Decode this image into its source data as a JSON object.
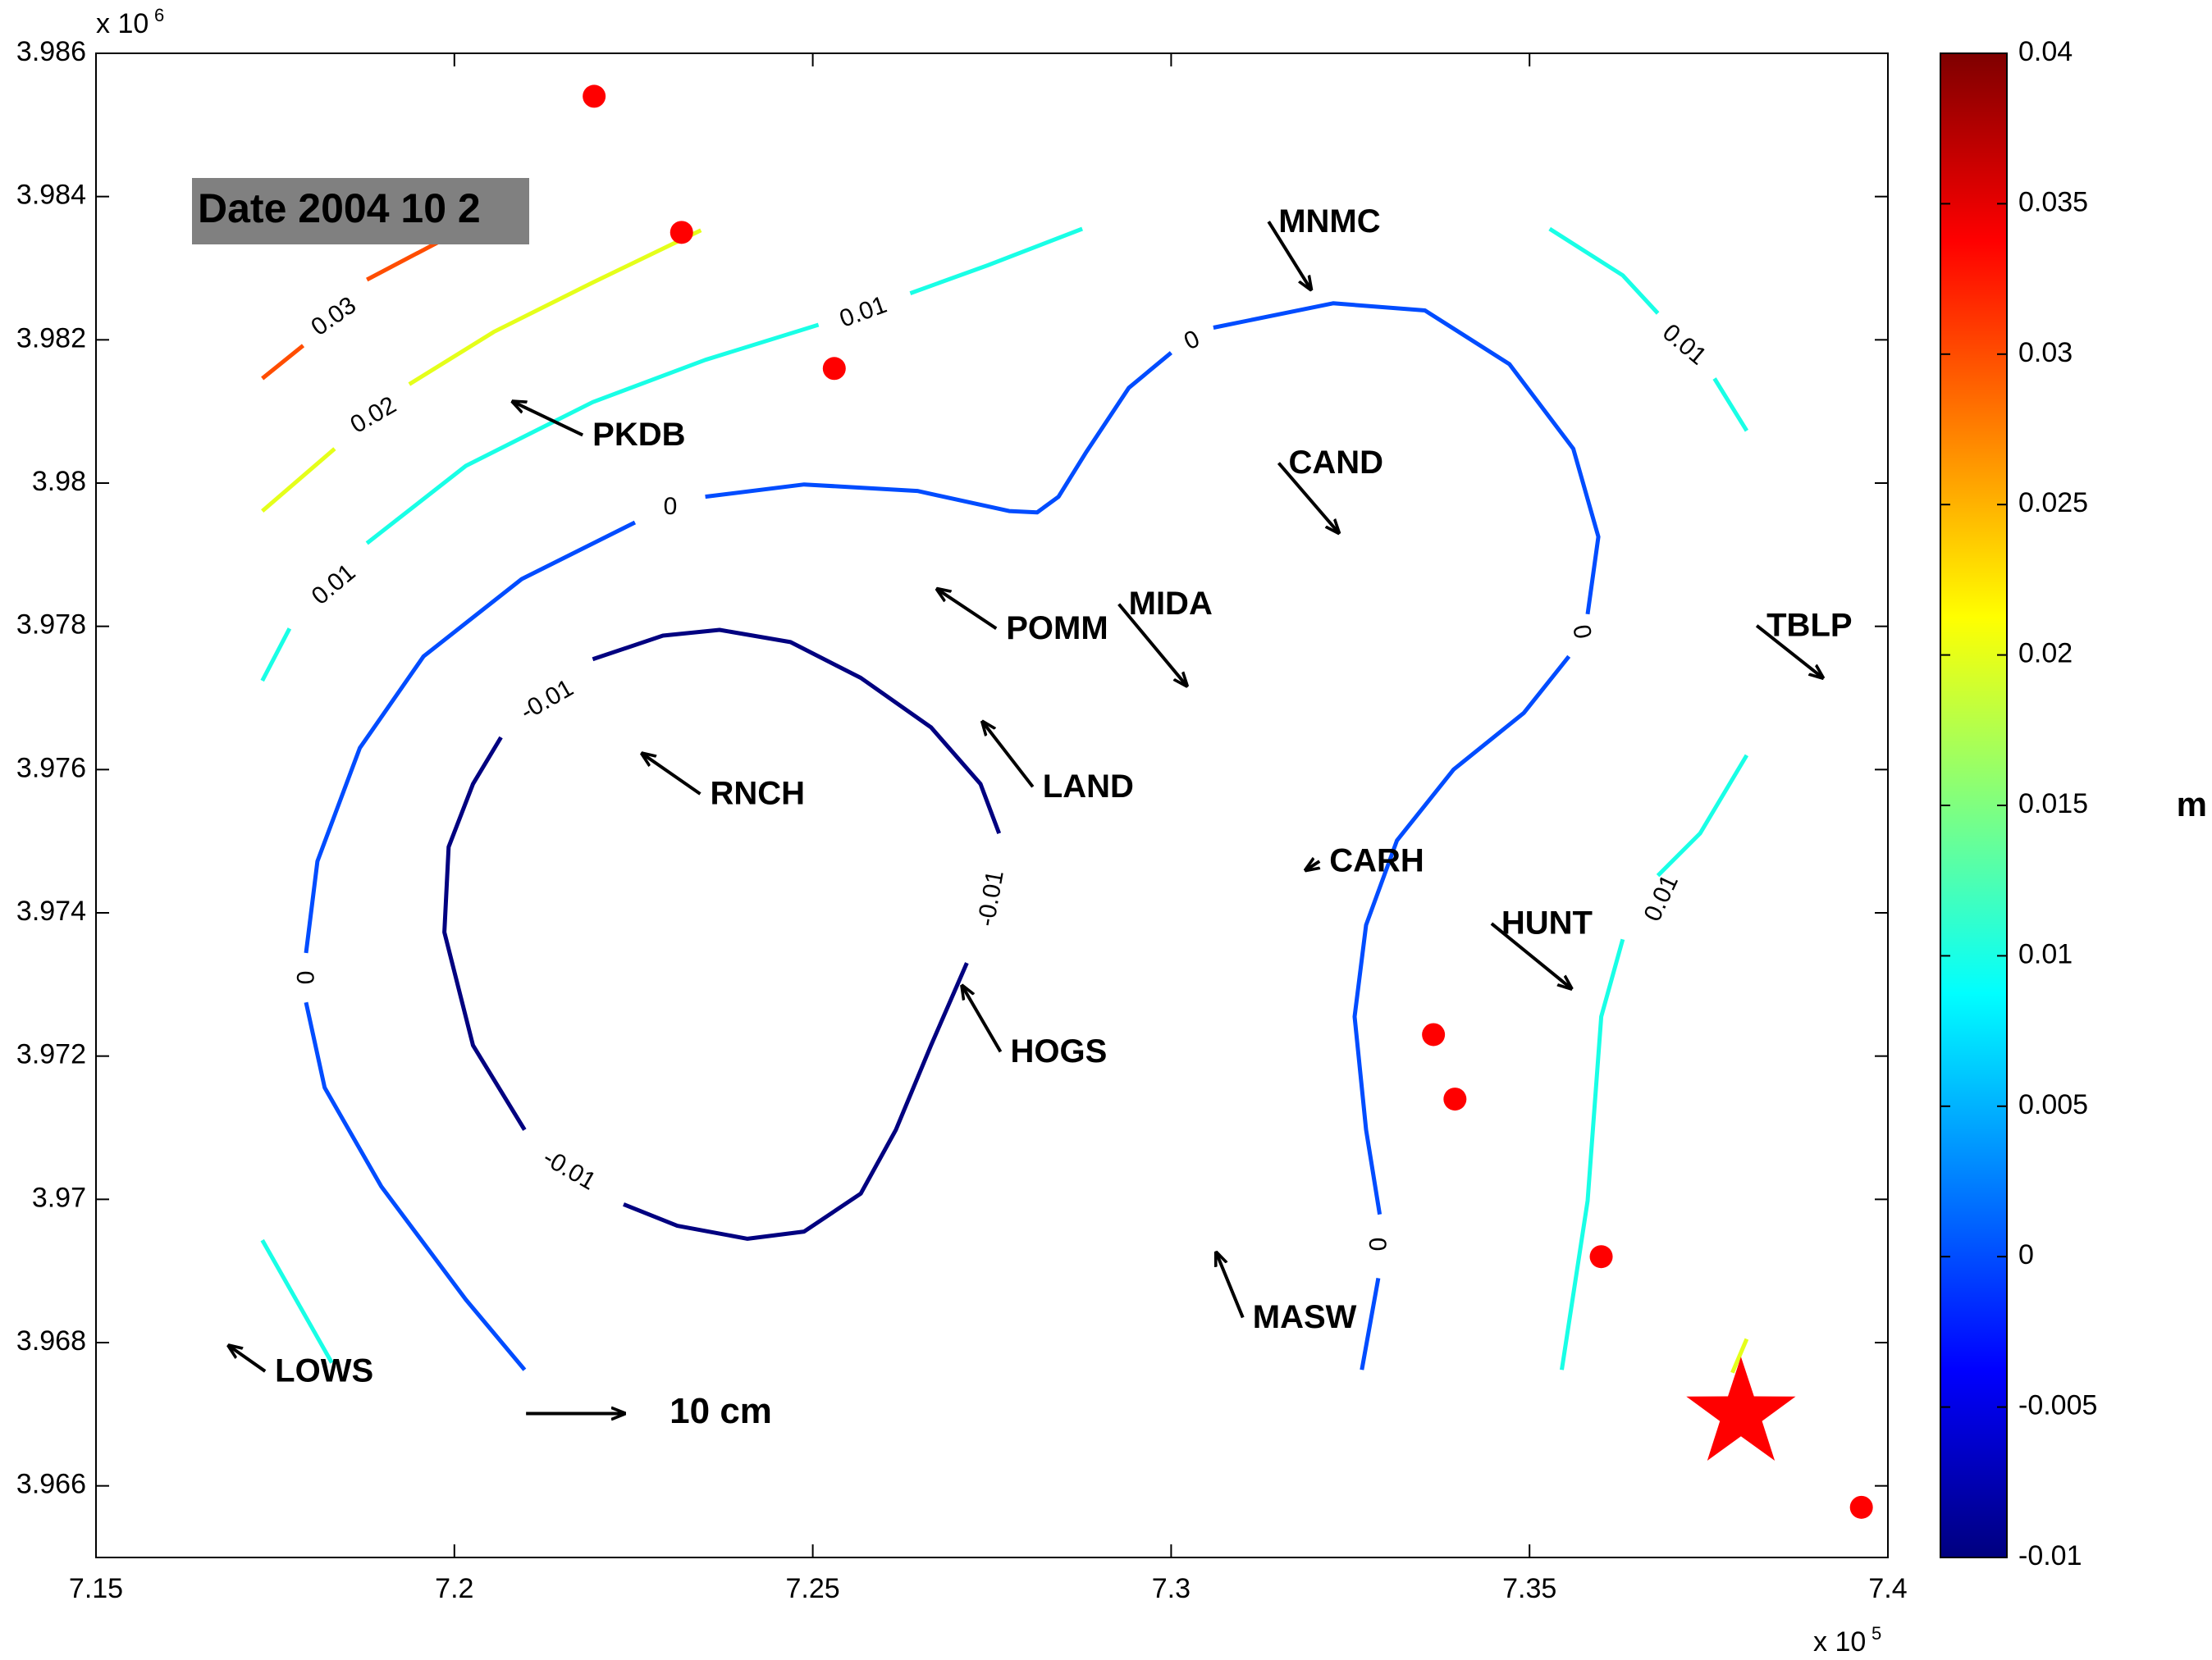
{
  "chart_data": {
    "type": "contour",
    "date_label": "Date 2004 10 2",
    "x_multiplier": "x 10",
    "x_power": "5",
    "y_multiplier": "x 10",
    "y_power": "6",
    "xlim": [
      7.15,
      7.4
    ],
    "xticks": [
      7.15,
      7.2,
      7.25,
      7.3,
      7.35,
      7.4
    ],
    "ylim": [
      3.965,
      3.986
    ],
    "yticks": [
      3.966,
      3.968,
      3.97,
      3.972,
      3.974,
      3.976,
      3.978,
      3.98,
      3.982,
      3.984,
      3.986
    ],
    "colormap": "jet",
    "colorbar_label": "m",
    "clim": [
      -0.01,
      0.04
    ],
    "cticks": [
      -0.01,
      -0.005,
      0,
      0.005,
      0.01,
      0.015,
      0.02,
      0.025,
      0.03,
      0.035,
      0.04
    ],
    "contours": [
      {
        "level": 0.03,
        "x": [
          7.1732,
          7.1789,
          null,
          7.1878,
          7.1992
        ],
        "y": [
          3.98146,
          3.98192,
          null,
          3.98284,
          3.98344
        ]
      },
      {
        "level": 0.02,
        "x": [
          7.1732,
          7.1833,
          null,
          7.1937,
          7.2055,
          7.2193,
          7.2344,
          null,
          7.3803,
          7.3783
        ],
        "y": [
          3.97961,
          3.98048,
          null,
          3.98138,
          3.98211,
          3.9828,
          3.98353,
          null,
          3.96805,
          3.96758
        ]
      },
      {
        "level": 0.01,
        "x": [
          7.1732,
          7.177,
          null,
          7.1878,
          7.2016,
          7.2193,
          7.235,
          7.2508,
          null,
          7.2636,
          7.2744,
          7.2876
        ],
        "y": [
          3.97724,
          3.97797,
          null,
          3.97916,
          3.98024,
          3.98113,
          3.98172,
          3.98221,
          null,
          3.98265,
          3.98304,
          3.98355
        ]
      },
      {
        "level": 0.01,
        "x": [
          7.3528,
          7.363,
          7.3679,
          null,
          7.3758,
          7.3803
        ],
        "y": [
          3.98355,
          3.9829,
          3.98237,
          null,
          3.98146,
          3.98073
        ]
      },
      {
        "level": 0.01,
        "x": [
          7.3803,
          7.3738,
          7.3679,
          null,
          7.363,
          7.36,
          7.3581,
          7.3545
        ],
        "y": [
          3.9762,
          3.97511,
          3.97452,
          null,
          3.97363,
          3.97255,
          3.96998,
          3.96762
        ]
      },
      {
        "level": 0.01,
        "x": [
          7.1732,
          7.1829
        ],
        "y": [
          3.96943,
          3.96772
        ]
      },
      {
        "level": 0,
        "x": [
          7.2098,
          7.2016,
          7.1898,
          7.1819,
          7.1793,
          null,
          7.1793,
          7.1809,
          7.1868,
          7.1957,
          7.2094,
          7.2252,
          null,
          7.235,
          7.2488,
          7.2646,
          7.2774,
          7.2813,
          7.2843,
          7.2882,
          7.2941,
          7.3,
          null,
          7.3059,
          7.3226,
          7.3354,
          7.3472,
          7.3561,
          7.3596,
          7.3581,
          null,
          7.3555,
          7.3492,
          7.3394,
          7.3315,
          7.3272,
          7.3256,
          7.3272,
          7.3291,
          null,
          7.3289,
          7.3266
        ],
        "y": [
          3.96762,
          3.9686,
          3.97018,
          3.97156,
          3.97275,
          null,
          3.97344,
          3.97472,
          3.9763,
          3.97758,
          3.97866,
          3.97945,
          null,
          3.97981,
          3.97998,
          3.97989,
          3.97961,
          3.97959,
          3.97981,
          3.98044,
          3.98133,
          3.98182,
          null,
          3.98217,
          3.98251,
          3.98241,
          3.98166,
          3.98048,
          3.97925,
          3.97817,
          null,
          3.97758,
          3.97679,
          3.976,
          3.97501,
          3.97383,
          3.97255,
          3.97097,
          3.96979,
          null,
          3.9689,
          3.96762
        ]
      },
      {
        "level": -0.01,
        "x": [
          7.2193,
          7.2291,
          7.237,
          7.2469,
          7.2567,
          7.2665,
          7.2734,
          7.276,
          null,
          7.2715,
          7.2665,
          7.2616,
          7.2567,
          7.2488,
          7.2409,
          7.2311,
          7.2236,
          null,
          7.2098,
          7.2026,
          7.1986,
          7.1992,
          7.2026,
          7.2065
        ],
        "y": [
          3.97754,
          3.97787,
          3.97795,
          3.97778,
          3.97728,
          3.97659,
          3.9758,
          3.97511,
          null,
          3.9733,
          3.97215,
          3.97097,
          3.97008,
          3.96955,
          3.96945,
          3.96963,
          3.96993,
          null,
          3.97097,
          3.97215,
          3.97373,
          3.97492,
          3.9758,
          3.97645
        ]
      }
    ],
    "stations": [
      {
        "name": "PKDB",
        "x": 7.2179,
        "y": 3.98067,
        "u": -7.1,
        "v": 3.4
      },
      {
        "name": "MNMC",
        "x": 7.3136,
        "y": 3.98365,
        "u": 4.3,
        "v": -6.9
      },
      {
        "name": "CAND",
        "x": 7.315,
        "y": 3.98028,
        "u": 6.1,
        "v": -7.1
      },
      {
        "name": "POMM",
        "x": 7.2756,
        "y": 3.97797,
        "u": -6.0,
        "v": 4.0
      },
      {
        "name": "MIDA",
        "x": 7.2927,
        "y": 3.97831,
        "u": 6.9,
        "v": -8.3
      },
      {
        "name": "TBLP",
        "x": 7.3817,
        "y": 3.97801,
        "u": 6.7,
        "v": -5.3
      },
      {
        "name": "RNCH",
        "x": 7.2343,
        "y": 3.97566,
        "u": -5.9,
        "v": 4.1
      },
      {
        "name": "LAND",
        "x": 7.2807,
        "y": 3.97576,
        "u": -5.1,
        "v": 6.6
      },
      {
        "name": "CARH",
        "x": 7.3207,
        "y": 3.97472,
        "u": -1.4,
        "v": -0.9
      },
      {
        "name": "HUNT",
        "x": 7.3447,
        "y": 3.97385,
        "u": 8.1,
        "v": -6.6
      },
      {
        "name": "HOGS",
        "x": 7.2762,
        "y": 3.97206,
        "u": -3.9,
        "v": 6.7
      },
      {
        "name": "MASW",
        "x": 7.31,
        "y": 3.96835,
        "u": -2.7,
        "v": 6.6
      },
      {
        "name": "LOWS",
        "x": 7.1736,
        "y": 3.9676,
        "u": -3.7,
        "v": 2.6
      }
    ],
    "reference_arrow": {
      "x": 7.21,
      "y": 3.96701,
      "value": 10,
      "label": "10 cm"
    },
    "events": {
      "color": "#ff0000",
      "x": [
        7.2195,
        7.2317,
        7.253,
        7.3366,
        7.3396,
        7.36,
        7.3963
      ],
      "y": [
        3.9854,
        3.9835,
        3.9816,
        3.9723,
        3.9714,
        3.9692,
        3.9657
      ]
    },
    "mainshock": {
      "color": "#ff0000",
      "x": 7.3795,
      "y": 3.967
    }
  }
}
